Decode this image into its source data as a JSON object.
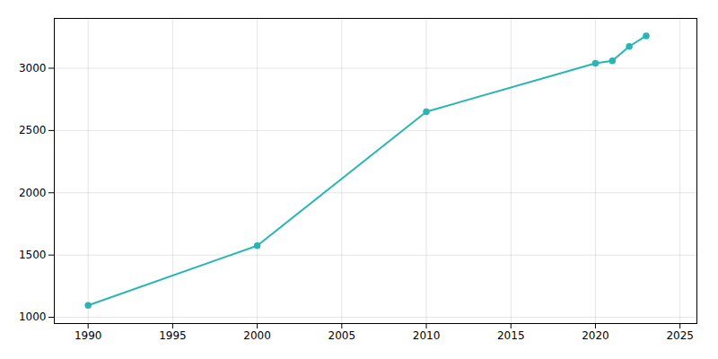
{
  "chart_data": {
    "type": "line",
    "x": [
      1990,
      2000,
      2010,
      2020,
      2021,
      2022,
      2023
    ],
    "values": [
      1096,
      1575,
      2651,
      3040,
      3059,
      3175,
      3260
    ],
    "color": "#2ab5b5",
    "marker": "circle",
    "xlim": [
      1988,
      2026
    ],
    "ylim": [
      950,
      3400
    ],
    "xticks": [
      1990,
      1995,
      2000,
      2005,
      2010,
      2015,
      2020,
      2025
    ],
    "yticks": [
      1000,
      1500,
      2000,
      2500,
      3000
    ],
    "grid": true
  }
}
